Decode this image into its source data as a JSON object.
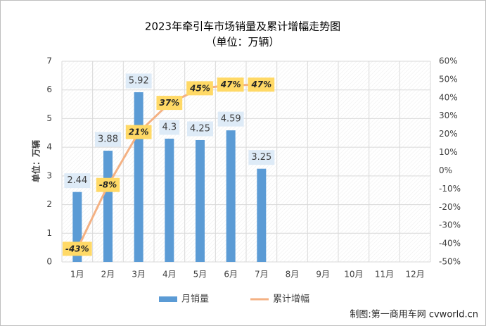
{
  "chart_data": {
    "type": "bar",
    "title": "2023年牵引车市场销量及累计增幅走势图",
    "subtitle": "（单位：万辆）",
    "y_label": "单位：万辆",
    "source": "制图:第一商用车网 cvworld.cn",
    "categories": [
      "1月",
      "2月",
      "3月",
      "4月",
      "5月",
      "6月",
      "7月",
      "8月",
      "9月",
      "10月",
      "11月",
      "12月"
    ],
    "series": [
      {
        "name": "月销量",
        "type": "bar",
        "color": "#5b9bd5",
        "values": [
          2.44,
          3.88,
          5.92,
          4.3,
          4.25,
          4.59,
          3.25,
          null,
          null,
          null,
          null,
          null
        ]
      },
      {
        "name": "累计增幅",
        "type": "line",
        "axis": "y2",
        "color": "#f4b183",
        "values": [
          -43,
          -8,
          21,
          37,
          45,
          47,
          47,
          null,
          null,
          null,
          null,
          null
        ],
        "value_labels": [
          "-43%",
          "-8%",
          "21%",
          "37%",
          "45%",
          "47%",
          "47%",
          null,
          null,
          null,
          null,
          null
        ]
      }
    ],
    "ylim": [
      0,
      7
    ],
    "yticks": [
      0,
      1,
      2,
      3,
      4,
      5,
      6,
      7
    ],
    "y2lim": [
      -50,
      60
    ],
    "y2ticks": [
      {
        "value": -50,
        "label": "-50%"
      },
      {
        "value": -40,
        "label": "-40%"
      },
      {
        "value": -30,
        "label": "-30%"
      },
      {
        "value": -20,
        "label": "-20%"
      },
      {
        "value": -10,
        "label": "-10%"
      },
      {
        "value": 0,
        "label": "0%"
      },
      {
        "value": 10,
        "label": "10%"
      },
      {
        "value": 20,
        "label": "20%"
      },
      {
        "value": 30,
        "label": "30%"
      },
      {
        "value": 40,
        "label": "40%"
      },
      {
        "value": 50,
        "label": "50%"
      },
      {
        "value": 60,
        "label": "60%"
      }
    ],
    "grid": true
  }
}
